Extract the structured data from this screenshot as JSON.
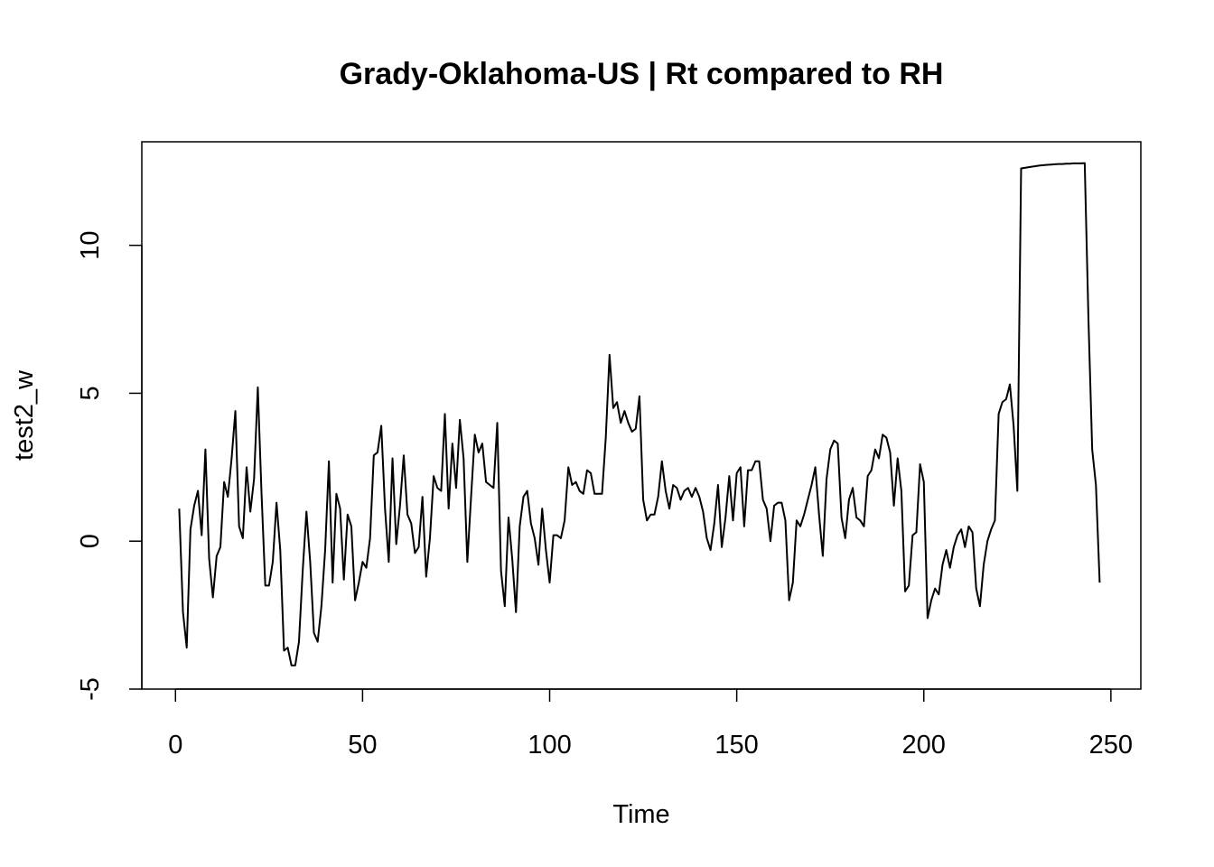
{
  "chart_data": {
    "type": "line",
    "title": "Grady-Oklahoma-US | Rt compared to RH",
    "xlabel": "Time",
    "ylabel": "test2_w",
    "xlim": [
      -9,
      258
    ],
    "ylim": [
      -5,
      13.5
    ],
    "x_ticks": [
      0,
      50,
      100,
      150,
      200,
      250
    ],
    "y_ticks": [
      -5,
      0,
      5,
      10
    ],
    "x_tick_labels": [
      "0",
      "50",
      "100",
      "150",
      "200",
      "250"
    ],
    "y_tick_labels": [
      "-5",
      "0",
      "5",
      "10"
    ],
    "grid": false,
    "legend": "none",
    "series": [
      {
        "x_start": 1,
        "color": "#000000",
        "values": [
          1.1,
          -2.4,
          -3.6,
          0.4,
          1.2,
          1.7,
          0.2,
          3.1,
          -0.6,
          -1.9,
          -0.5,
          -0.2,
          2.0,
          1.5,
          2.8,
          4.4,
          0.5,
          0.1,
          2.5,
          1.0,
          2.1,
          5.2,
          1.6,
          -1.5,
          -1.5,
          -0.7,
          1.3,
          -0.3,
          -3.7,
          -3.6,
          -4.2,
          -4.2,
          -3.4,
          -1.0,
          1.0,
          -0.7,
          -3.1,
          -3.4,
          -2.2,
          -0.3,
          2.7,
          -1.4,
          1.6,
          1.1,
          -1.3,
          0.9,
          0.5,
          -2.0,
          -1.4,
          -0.7,
          -0.9,
          0.1,
          2.9,
          3.0,
          3.9,
          1.1,
          -0.7,
          2.8,
          -0.1,
          1.2,
          2.9,
          0.9,
          0.6,
          -0.4,
          -0.2,
          1.5,
          -1.2,
          0.1,
          2.2,
          1.8,
          1.7,
          4.3,
          1.1,
          3.3,
          1.8,
          4.1,
          2.8,
          -0.7,
          1.5,
          3.6,
          3.0,
          3.3,
          2.0,
          1.9,
          1.8,
          4.0,
          -1.0,
          -2.2,
          0.8,
          -0.6,
          -2.4,
          0.5,
          1.5,
          1.7,
          0.6,
          0.1,
          -0.8,
          1.1,
          -0.3,
          -1.4,
          0.2,
          0.2,
          0.1,
          0.7,
          2.5,
          1.9,
          2.0,
          1.7,
          1.6,
          2.4,
          2.3,
          1.6,
          1.6,
          1.6,
          3.5,
          6.3,
          4.5,
          4.7,
          4.0,
          4.4,
          4.0,
          3.7,
          3.8,
          4.9,
          1.4,
          0.7,
          0.9,
          0.9,
          1.5,
          2.7,
          1.7,
          1.1,
          1.9,
          1.8,
          1.4,
          1.7,
          1.8,
          1.5,
          1.8,
          1.5,
          1.0,
          0.1,
          -0.3,
          0.6,
          1.9,
          -0.2,
          0.8,
          2.2,
          0.7,
          2.3,
          2.5,
          0.5,
          2.4,
          2.4,
          2.7,
          2.7,
          1.4,
          1.1,
          0.0,
          1.2,
          1.3,
          1.3,
          0.7,
          -2.0,
          -1.4,
          0.7,
          0.5,
          0.9,
          1.4,
          1.9,
          2.5,
          0.9,
          -0.5,
          2.1,
          3.1,
          3.4,
          3.3,
          0.8,
          0.1,
          1.4,
          1.8,
          0.8,
          0.7,
          0.5,
          2.2,
          2.4,
          3.1,
          2.8,
          3.6,
          3.5,
          3.0,
          1.2,
          2.8,
          1.7,
          -1.7,
          -1.5,
          0.2,
          0.3,
          2.6,
          2.0,
          -2.6,
          -2.0,
          -1.6,
          -1.8,
          -0.8,
          -0.3,
          -0.9,
          -0.2,
          0.2,
          0.4,
          -0.2,
          0.5,
          0.3,
          -1.6,
          -2.2,
          -0.8,
          0.0,
          0.4,
          0.7,
          4.3,
          4.7,
          4.8,
          5.3,
          3.9,
          1.7,
          12.6,
          12.62,
          12.64,
          12.66,
          12.68,
          12.7,
          12.71,
          12.72,
          12.73,
          12.74,
          12.75,
          12.75,
          12.76,
          12.76,
          12.77,
          12.77,
          12.77,
          12.78,
          7.5,
          3.1,
          1.9,
          -1.4
        ]
      }
    ]
  }
}
